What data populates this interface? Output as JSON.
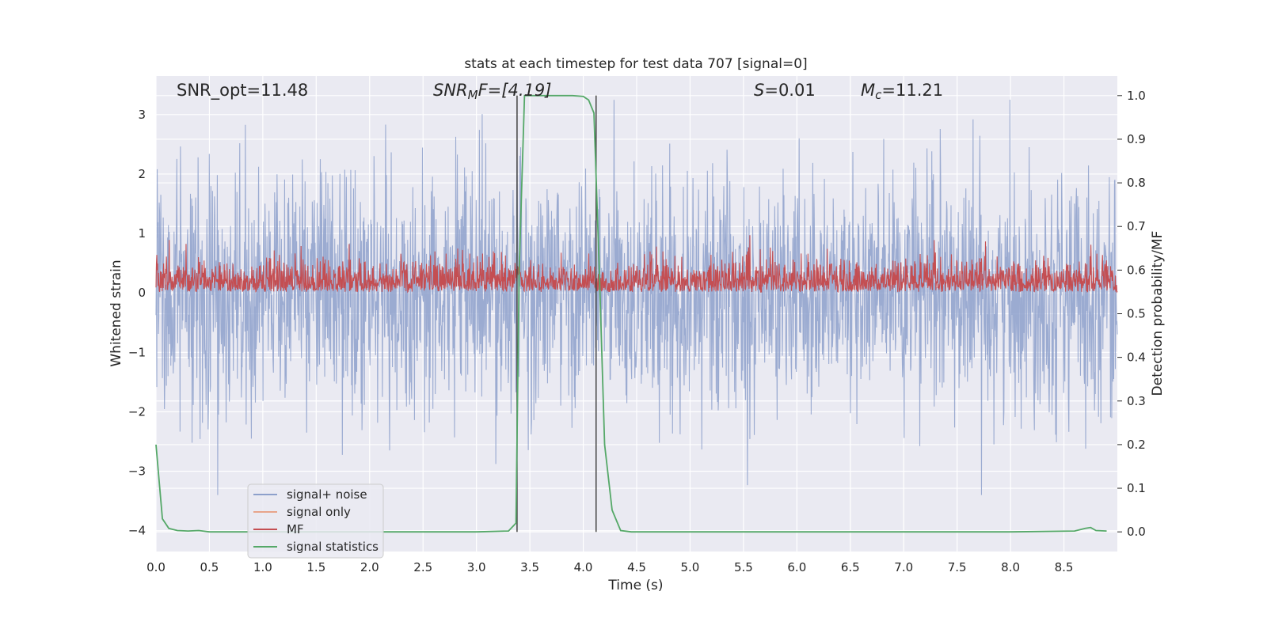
{
  "chart_data": {
    "type": "line",
    "title": "stats at each timestep for test data 707 [signal=0]",
    "xlabel": "Time (s)",
    "ylabel": "Whitened strain",
    "ylabel_right": "Detection probability/MF",
    "xlim": [
      0,
      9.0
    ],
    "ylim": [
      -4.35,
      3.65
    ],
    "ylim_right": [
      -0.045,
      1.045
    ],
    "x_ticks": [
      "0.0",
      "0.5",
      "1.0",
      "1.5",
      "2.0",
      "2.5",
      "3.0",
      "3.5",
      "4.0",
      "4.5",
      "5.0",
      "5.5",
      "6.0",
      "6.5",
      "7.0",
      "7.5",
      "8.0",
      "8.5"
    ],
    "y_ticks": [
      "3",
      "2",
      "1",
      "0",
      "−1",
      "−2",
      "−3",
      "−4"
    ],
    "y_ticks_right": [
      "1.0",
      "0.9",
      "0.8",
      "0.7",
      "0.6",
      "0.5",
      "0.4",
      "0.3",
      "0.2",
      "0.1",
      "0.0"
    ],
    "annotations": {
      "snr_opt": "SNR_opt=11.48",
      "snr_mf_base": "SNR",
      "snr_mf_sub": "M",
      "snr_mf_rest": "F=[4.19]",
      "s_var": "S",
      "s_rest": "=0.01",
      "mc_var": "M",
      "mc_sub": "c",
      "mc_rest": "=11.21"
    },
    "vertical_lines_x": [
      3.38,
      4.12
    ],
    "series": [
      {
        "name": "signal+ noise",
        "color": "#8da0cb",
        "description_range": [
          -3.4,
          3.25
        ],
        "noise_std": 0.98
      },
      {
        "name": "signal only",
        "color": "#e8a48a"
      },
      {
        "name": "MF",
        "color": "#c44e52",
        "axis": "right",
        "baseline": 0.55,
        "range": [
          0.55,
          0.68
        ]
      },
      {
        "name": "signal statistics",
        "color": "#55a868",
        "axis": "right",
        "x": [
          0.0,
          0.06,
          0.12,
          0.2,
          0.3,
          0.4,
          0.5,
          1.0,
          2.0,
          3.0,
          3.3,
          3.37,
          3.4,
          3.45,
          3.5,
          3.7,
          3.9,
          4.0,
          4.05,
          4.1,
          4.15,
          4.2,
          4.27,
          4.35,
          4.45,
          4.6,
          5.0,
          6.0,
          7.0,
          8.0,
          8.6,
          8.7,
          8.75,
          8.8,
          8.9
        ],
        "y": [
          0.2,
          0.03,
          0.008,
          0.003,
          0.002,
          0.003,
          0.0,
          0.0,
          0.0,
          0.0,
          0.002,
          0.02,
          0.6,
          1.0,
          1.0,
          1.0,
          1.0,
          0.998,
          0.99,
          0.96,
          0.6,
          0.2,
          0.05,
          0.003,
          0.0,
          0.0,
          0.0,
          0.0,
          0.0,
          0.0,
          0.002,
          0.008,
          0.01,
          0.003,
          0.002
        ]
      }
    ],
    "grid": true,
    "legend_position": "lower-left"
  }
}
